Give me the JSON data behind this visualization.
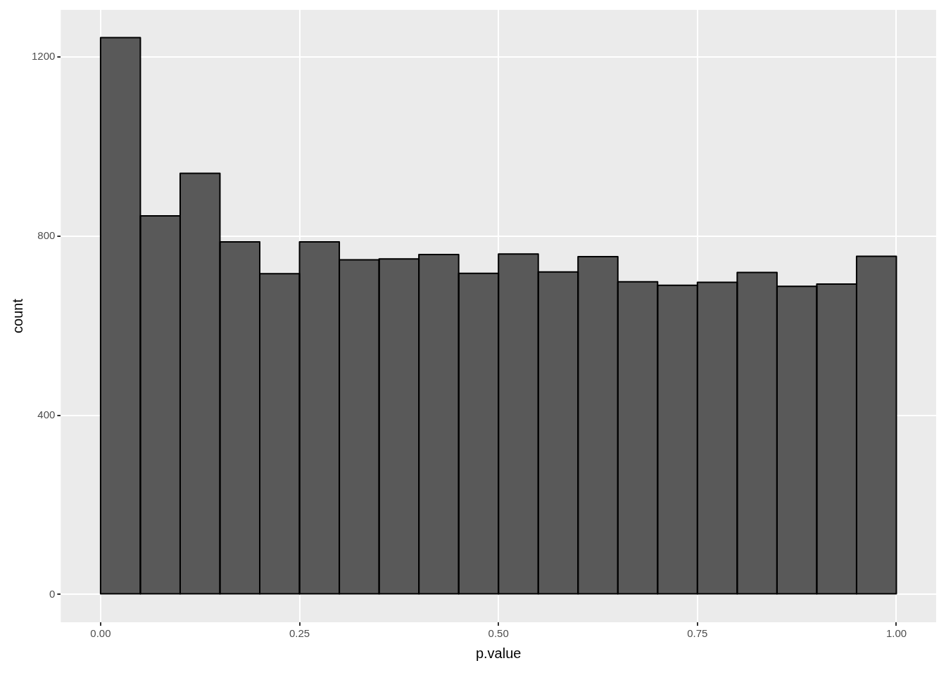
{
  "chart_data": {
    "type": "histogram",
    "xlabel": "p.value",
    "ylabel": "count",
    "bins": [
      0,
      0.05,
      0.1,
      0.15,
      0.2,
      0.25,
      0.3,
      0.35,
      0.4,
      0.45,
      0.5,
      0.55,
      0.6,
      0.65,
      0.7,
      0.75,
      0.8,
      0.85,
      0.9,
      0.95,
      1
    ],
    "values": [
      1243,
      845,
      940,
      787,
      716,
      787,
      747,
      749,
      759,
      717,
      760,
      720,
      754,
      698,
      690,
      697,
      719,
      688,
      693,
      755
    ],
    "color": "#595959",
    "xlim": [
      -0.05,
      1.05
    ],
    "xticks": [
      {
        "value": 0,
        "label": "0.00"
      },
      {
        "value": 0.25,
        "label": "0.25"
      },
      {
        "value": 0.5,
        "label": "0.50"
      },
      {
        "value": 0.75,
        "label": "0.75"
      },
      {
        "value": 1,
        "label": "1.00"
      }
    ],
    "ylim": [
      -62,
      1305
    ],
    "yticks": [
      0,
      400,
      800,
      1200
    ],
    "grid": true,
    "legend": false
  }
}
